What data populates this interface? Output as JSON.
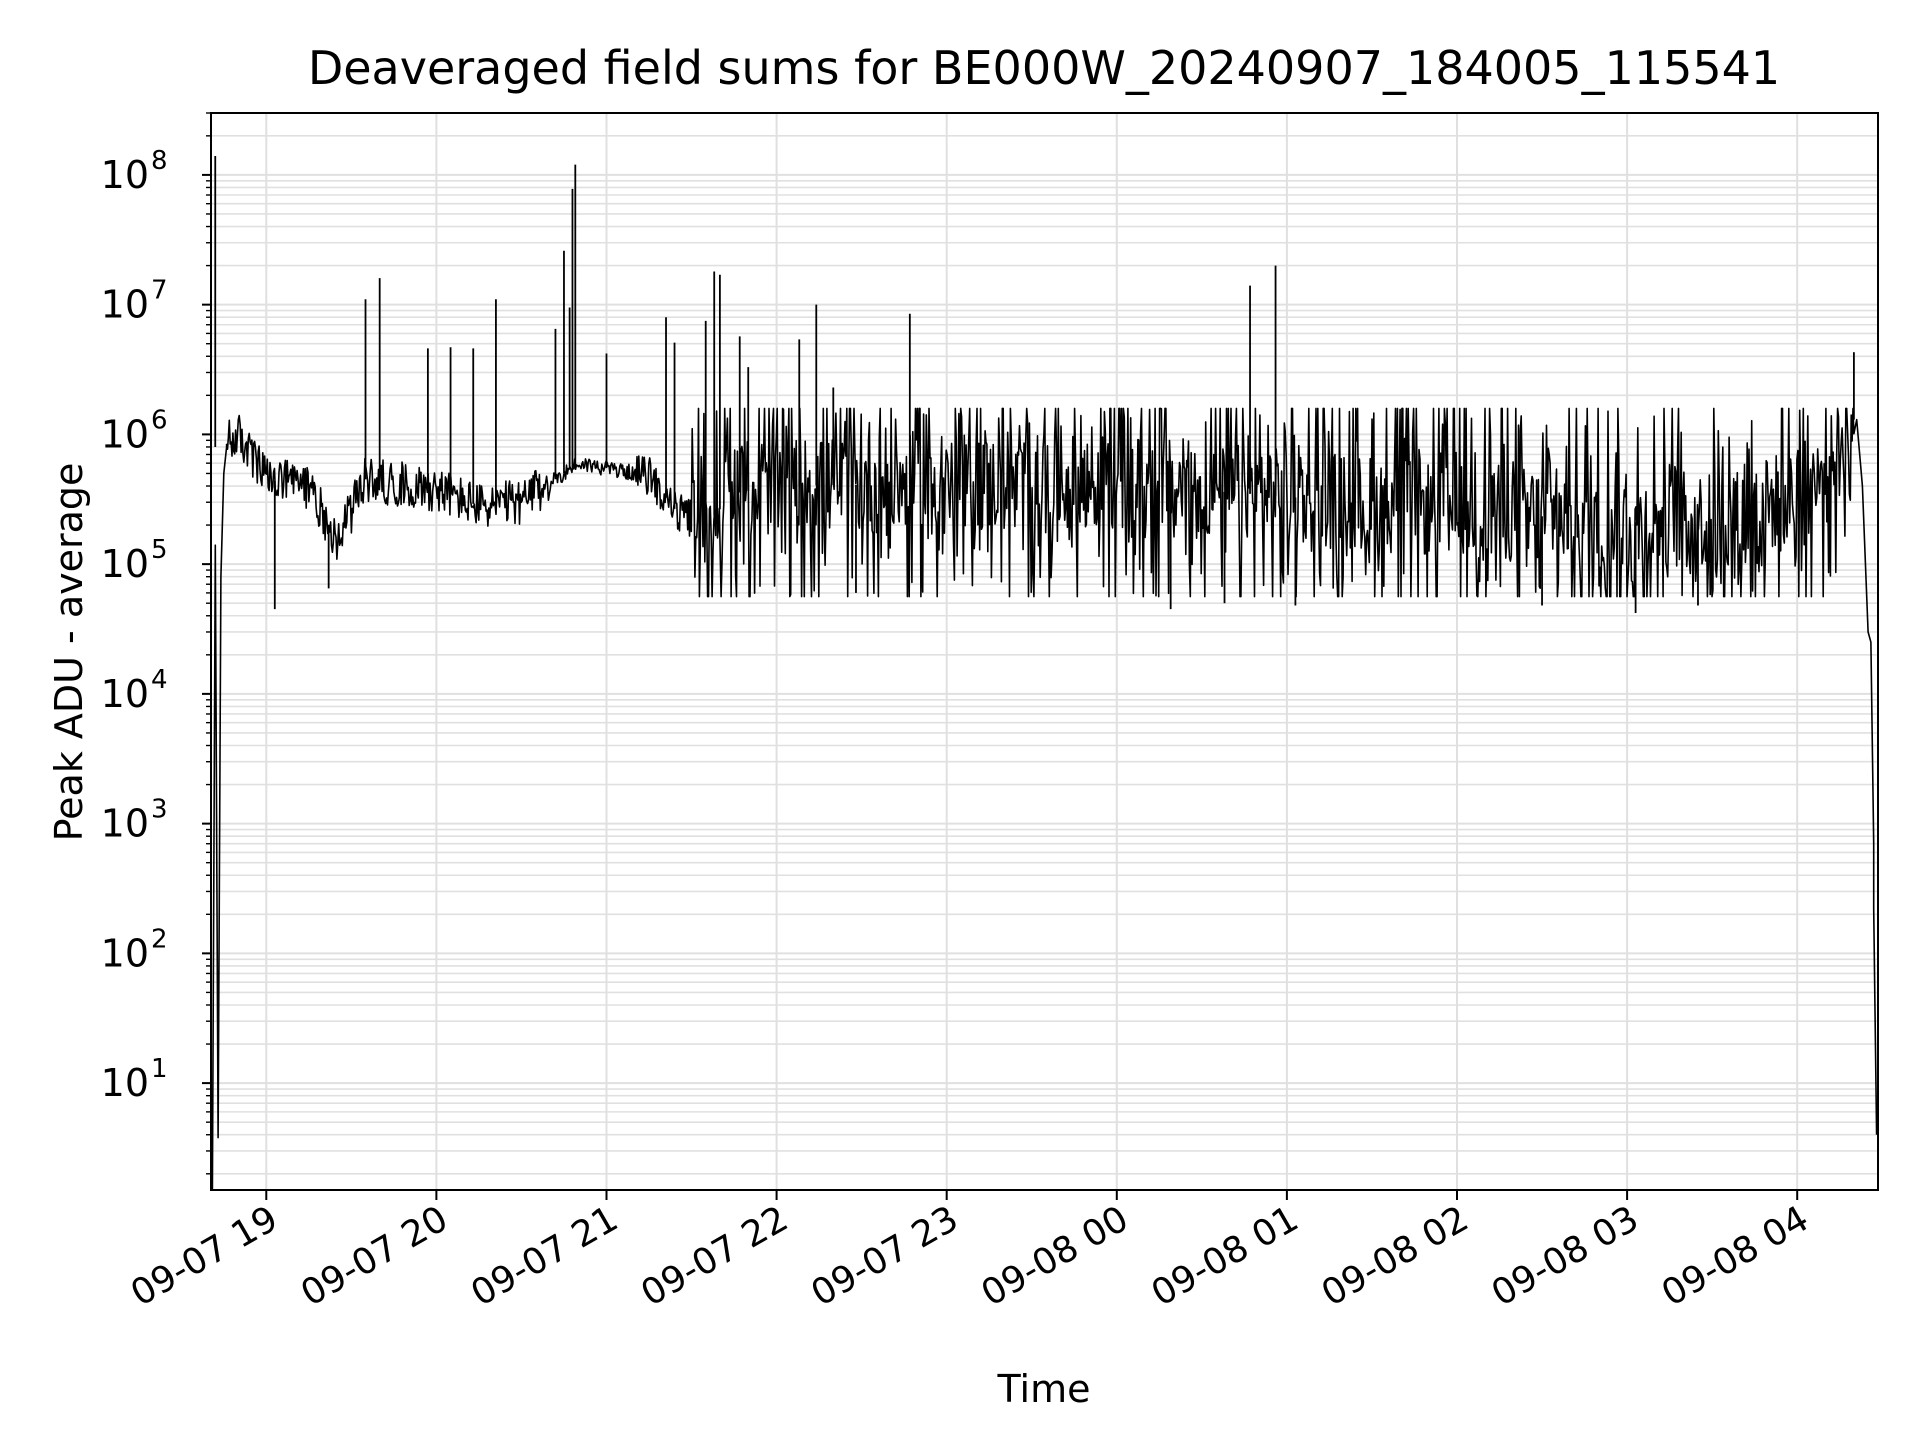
{
  "chart_data": {
    "type": "line",
    "title": "Deaveraged field sums for BE000W_20240907_184005_115541",
    "xlabel": "Time",
    "ylabel": "Peak ADU - average",
    "yscale": "log",
    "ylim": [
      1.5,
      300000000
    ],
    "xlim": [
      "2024-09-07 18:40:30",
      "2024-09-08 04:28:30"
    ],
    "grid": true,
    "line_color": "#000000",
    "grid_color": "#e0e0e0",
    "x_ticks": [
      {
        "value": "2024-09-07 19:00",
        "label": "09-07 19"
      },
      {
        "value": "2024-09-07 20:00",
        "label": "09-07 20"
      },
      {
        "value": "2024-09-07 21:00",
        "label": "09-07 21"
      },
      {
        "value": "2024-09-07 22:00",
        "label": "09-07 22"
      },
      {
        "value": "2024-09-07 23:00",
        "label": "09-07 23"
      },
      {
        "value": "2024-09-08 00:00",
        "label": "09-08 00"
      },
      {
        "value": "2024-09-08 01:00",
        "label": "09-08 01"
      },
      {
        "value": "2024-09-08 02:00",
        "label": "09-08 02"
      },
      {
        "value": "2024-09-08 03:00",
        "label": "09-08 03"
      },
      {
        "value": "2024-09-08 04:00",
        "label": "09-08 04"
      }
    ],
    "y_ticks": [
      {
        "value": 10,
        "base": "10",
        "exp": "1"
      },
      {
        "value": 100,
        "base": "10",
        "exp": "2"
      },
      {
        "value": 1000,
        "base": "10",
        "exp": "3"
      },
      {
        "value": 10000,
        "base": "10",
        "exp": "4"
      },
      {
        "value": 100000,
        "base": "10",
        "exp": "5"
      },
      {
        "value": 1000000,
        "base": "10",
        "exp": "6"
      },
      {
        "value": 10000000,
        "base": "10",
        "exp": "7"
      },
      {
        "value": 100000000,
        "base": "10",
        "exp": "8"
      }
    ],
    "series": [
      {
        "baseline": [
          [
            "2024-09-07 18:45",
            800000
          ],
          [
            "2024-09-07 18:50",
            1000000
          ],
          [
            "2024-09-07 19:00",
            450000
          ],
          [
            "2024-09-07 19:15",
            400000
          ],
          [
            "2024-09-07 19:25",
            150000
          ],
          [
            "2024-09-07 19:35",
            450000
          ],
          [
            "2024-09-07 20:00",
            380000
          ],
          [
            "2024-09-07 20:15",
            280000
          ],
          [
            "2024-09-07 20:30",
            300000
          ],
          [
            "2024-09-07 20:40",
            420000
          ],
          [
            "2024-09-07 20:50",
            600000
          ],
          [
            "2024-09-07 21:00",
            550000
          ],
          [
            "2024-09-07 21:15",
            480000
          ],
          [
            "2024-09-07 21:25",
            250000
          ],
          [
            "2024-09-07 21:35",
            200000
          ],
          [
            "2024-09-07 21:45",
            350000
          ],
          [
            "2024-09-07 22:00",
            400000
          ],
          [
            "2024-09-07 23:00",
            420000
          ],
          [
            "2024-09-08 00:00",
            420000
          ],
          [
            "2024-09-08 01:00",
            330000
          ],
          [
            "2024-09-08 02:00",
            260000
          ],
          [
            "2024-09-08 03:00",
            210000
          ],
          [
            "2024-09-08 03:40",
            230000
          ],
          [
            "2024-09-08 04:10",
            450000
          ],
          [
            "2024-09-08 04:15",
            900000
          ],
          [
            "2024-09-08 04:20",
            1300000
          ]
        ],
        "spikes": [
          [
            "2024-09-07 18:42",
            140000000,
            "down",
            4
          ],
          [
            "2024-09-07 19:03",
            45000,
            "down",
            0
          ],
          [
            "2024-09-07 19:22",
            65000,
            "down",
            0
          ],
          [
            "2024-09-07 19:35",
            11000000,
            "up",
            0
          ],
          [
            "2024-09-07 19:40",
            16000000,
            "up",
            0
          ],
          [
            "2024-09-07 19:57",
            4600000,
            "up",
            0
          ],
          [
            "2024-09-07 20:05",
            4700000,
            "up",
            0
          ],
          [
            "2024-09-07 20:13",
            4600000,
            "up",
            0
          ],
          [
            "2024-09-07 20:21",
            11000000,
            "up",
            0
          ],
          [
            "2024-09-07 20:42",
            6500000,
            "up",
            0
          ],
          [
            "2024-09-07 20:45",
            26000000,
            "up",
            0
          ],
          [
            "2024-09-07 20:47",
            9500000,
            "up",
            0
          ],
          [
            "2024-09-07 20:48",
            78000000,
            "up",
            0
          ],
          [
            "2024-09-07 20:49",
            120000000,
            "up",
            0
          ],
          [
            "2024-09-07 21:00",
            4200000,
            "up",
            0
          ],
          [
            "2024-09-07 21:21",
            8000000,
            "up",
            0
          ],
          [
            "2024-09-07 21:24",
            5100000,
            "up",
            0
          ],
          [
            "2024-09-07 21:35",
            7500000,
            "up",
            0
          ],
          [
            "2024-09-07 21:38",
            18000000,
            "up",
            0
          ],
          [
            "2024-09-07 21:40",
            17000000,
            "up",
            0
          ],
          [
            "2024-09-07 21:47",
            5700000,
            "up",
            0
          ],
          [
            "2024-09-07 21:50",
            3300000,
            "up",
            0
          ],
          [
            "2024-09-07 22:08",
            5400000,
            "up",
            0
          ],
          [
            "2024-09-07 22:14",
            10000000,
            "up",
            0
          ],
          [
            "2024-09-07 22:20",
            2300000,
            "up",
            0
          ],
          [
            "2024-09-07 22:47",
            8500000,
            "up",
            0
          ],
          [
            "2024-09-07 22:28",
            60000,
            "down",
            0
          ],
          [
            "2024-09-08 00:19",
            45000,
            "down",
            0
          ],
          [
            "2024-09-08 00:38",
            50000,
            "down",
            0
          ],
          [
            "2024-09-08 00:47",
            14000000,
            "up",
            0
          ],
          [
            "2024-09-08 00:56",
            20000000,
            "up",
            0
          ],
          [
            "2024-09-08 01:03",
            48000,
            "down",
            0
          ],
          [
            "2024-09-08 02:30",
            48000,
            "down",
            0
          ],
          [
            "2024-09-08 03:03",
            42000,
            "down",
            0
          ],
          [
            "2024-09-08 03:25",
            48000,
            "down",
            0
          ],
          [
            "2024-09-08 04:20",
            4300000,
            "up",
            0
          ]
        ],
        "ramp_start": [
          [
            "2024-09-07 18:41",
            1.5
          ],
          [
            "2024-09-07 18:42",
            140000
          ],
          [
            "2024-09-07 18:43",
            3.8
          ],
          [
            "2024-09-07 18:44",
            80000
          ],
          [
            "2024-09-07 18:45",
            500000
          ],
          [
            "2024-09-07 18:46",
            800000
          ]
        ],
        "ramp_end": [
          [
            "2024-09-08 04:21",
            1300000
          ],
          [
            "2024-09-08 04:23",
            400000
          ],
          [
            "2024-09-08 04:25",
            30000
          ],
          [
            "2024-09-08 04:26",
            25000
          ],
          [
            "2024-09-08 04:27",
            700
          ],
          [
            "2024-09-08 04:27",
            220
          ],
          [
            "2024-09-08 04:28",
            4
          ]
        ]
      }
    ]
  }
}
